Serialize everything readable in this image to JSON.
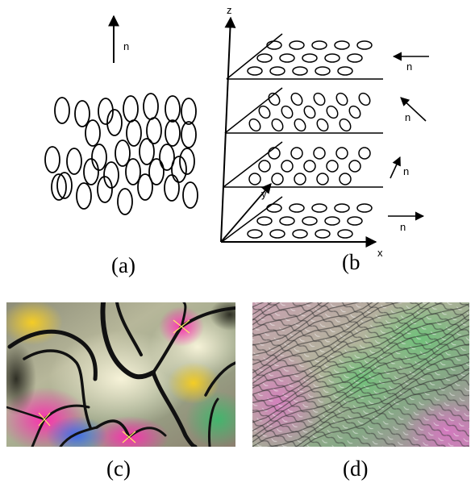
{
  "panels": {
    "a": {
      "label": "(a)",
      "director_label": "n"
    },
    "b": {
      "label": "(b",
      "axes": {
        "z": "z",
        "y": "y",
        "x": "x"
      },
      "director_labels": [
        "n",
        "n",
        "n",
        "n"
      ]
    },
    "c": {
      "label": "(c)"
    },
    "d": {
      "label": "(d)"
    }
  },
  "colors": {
    "ink": "#000000",
    "background": "#ffffff"
  }
}
